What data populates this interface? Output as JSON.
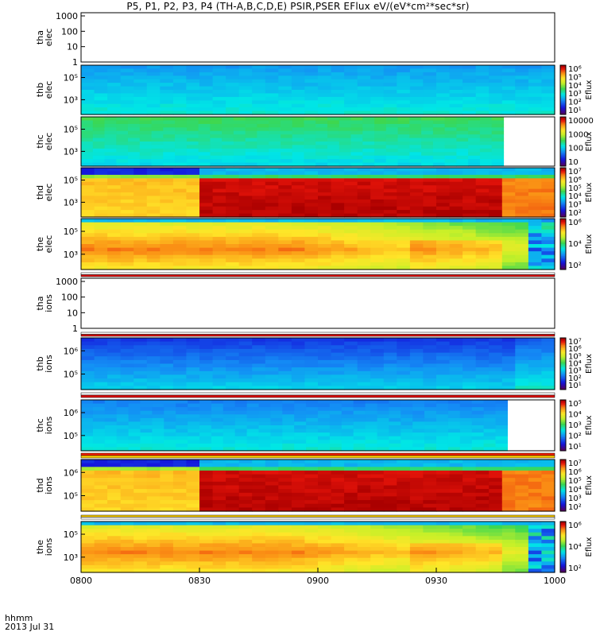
{
  "figure": {
    "title": "P5, P1, P2, P3, P4 (TH-A,B,C,D,E) PSIR,PSER EFlux eV/(eV*cm²*sec*sr)",
    "time_format_label": "hhmm",
    "date_label": "2013 Jul 31"
  },
  "chart_data": {
    "type": "heatmap",
    "x_tick_labels": [
      "0800",
      "0830",
      "0900",
      "0930",
      "1000"
    ],
    "x_range": [
      "0800",
      "1000"
    ],
    "colorbar_label": "Eflux",
    "panels": [
      {
        "id": "tha-elec",
        "ylabel": [
          "tha",
          "elec"
        ],
        "yticks": [
          "1000",
          "100",
          "10",
          "1"
        ],
        "empty": true,
        "colorbar": null
      },
      {
        "id": "thb-elec",
        "ylabel": [
          "thb",
          "elec"
        ],
        "yticks": [
          "10⁵",
          "10³"
        ],
        "colorbar": [
          "10⁶",
          "10⁵",
          "10⁴",
          "10³",
          "10²",
          "10¹"
        ],
        "data_end": "1000",
        "pattern": "uniform-blue-cyan",
        "base_level": 0.3
      },
      {
        "id": "thc-elec",
        "ylabel": [
          "thc",
          "elec"
        ],
        "yticks": [
          "10⁵",
          "10³"
        ],
        "colorbar": [
          "10000",
          "1000",
          "100",
          "10"
        ],
        "data_end": "0947",
        "pattern": "green-top-cyan-bottom",
        "base_level": 0.45
      },
      {
        "id": "thd-elec",
        "ylabel": [
          "thd",
          "elec"
        ],
        "yticks": [
          "10⁵",
          "10³"
        ],
        "colorbar": [
          "10⁷",
          "10⁶",
          "10⁵",
          "10⁴",
          "10³",
          "10²"
        ],
        "data_end": "1000",
        "pattern": "step-at-0830",
        "step_time": "0830",
        "base_level": 0.78
      },
      {
        "id": "the-elec",
        "ylabel": [
          "the",
          "elec"
        ],
        "yticks": [
          "10⁵",
          "10³"
        ],
        "colorbar": [
          "10⁶",
          "10⁴",
          "10²"
        ],
        "data_end": "1000",
        "pattern": "orange-yellow-decay",
        "base_level": 0.78
      },
      {
        "id": "tha-ions",
        "ylabel": [
          "tha",
          "ions"
        ],
        "yticks": [
          "1000",
          "100",
          "10",
          "1"
        ],
        "empty": true,
        "colorbar": null
      },
      {
        "id": "thb-ions",
        "ylabel": [
          "thb",
          "ions"
        ],
        "yticks": [
          "10⁶",
          "10⁵"
        ],
        "colorbar": [
          "10⁷",
          "10⁶",
          "10⁵",
          "10⁴",
          "10³",
          "10²",
          "10¹"
        ],
        "data_end": "1000",
        "pattern": "blue-to-cyan",
        "base_level": 0.25
      },
      {
        "id": "thc-ions",
        "ylabel": [
          "thc",
          "ions"
        ],
        "yticks": [
          "10⁶",
          "10⁵"
        ],
        "colorbar": [
          "10⁵",
          "10⁴",
          "10³",
          "10²",
          "10¹"
        ],
        "data_end": "0948",
        "pattern": "blue-to-cyan-light",
        "base_level": 0.32
      },
      {
        "id": "thd-ions",
        "ylabel": [
          "thd",
          "ions"
        ],
        "yticks": [
          "10⁶",
          "10⁵"
        ],
        "colorbar": [
          "10⁷",
          "10⁶",
          "10⁵",
          "10⁴",
          "10³",
          "10²"
        ],
        "data_end": "1000",
        "pattern": "step-at-0830",
        "step_time": "0830",
        "base_level": 0.78
      },
      {
        "id": "the-ions",
        "ylabel": [
          "the",
          "ions"
        ],
        "yticks": [
          "10⁵",
          "10³"
        ],
        "colorbar": [
          "10⁶",
          "10⁴",
          "10²"
        ],
        "data_end": "1000",
        "pattern": "orange-yellow-decay",
        "base_level": 0.75
      }
    ]
  }
}
